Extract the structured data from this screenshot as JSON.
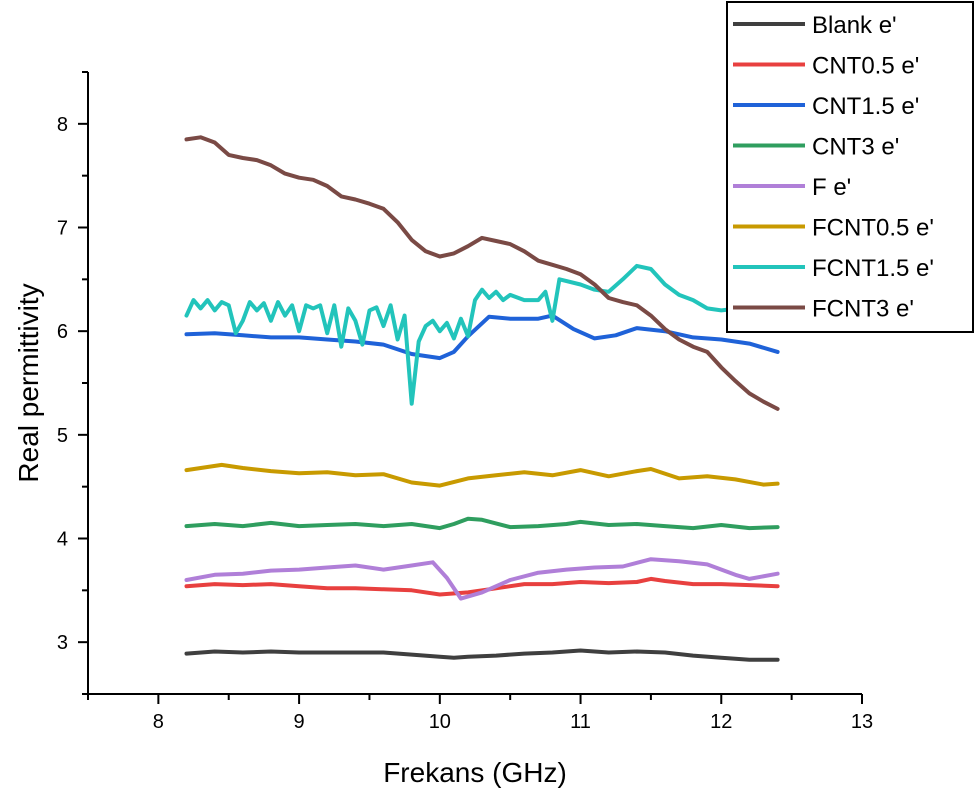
{
  "chart_data": {
    "type": "line",
    "xlabel": "Frekans (GHz)",
    "ylabel": "Real permittivity",
    "xlim": [
      7.5,
      13
    ],
    "ylim": [
      2.5,
      8.5
    ],
    "xticks": [
      8,
      9,
      10,
      11,
      12,
      13
    ],
    "yticks": [
      3,
      4,
      5,
      6,
      7,
      8
    ],
    "grid": false,
    "legend_position": "top-right",
    "series": [
      {
        "name": "Blank e'",
        "color": "#3f3f3f",
        "points": [
          [
            8.2,
            2.89
          ],
          [
            8.4,
            2.91
          ],
          [
            8.6,
            2.9
          ],
          [
            8.8,
            2.91
          ],
          [
            9.0,
            2.9
          ],
          [
            9.2,
            2.9
          ],
          [
            9.4,
            2.9
          ],
          [
            9.6,
            2.9
          ],
          [
            9.8,
            2.88
          ],
          [
            10.0,
            2.86
          ],
          [
            10.1,
            2.85
          ],
          [
            10.2,
            2.86
          ],
          [
            10.4,
            2.87
          ],
          [
            10.6,
            2.89
          ],
          [
            10.8,
            2.9
          ],
          [
            11.0,
            2.92
          ],
          [
            11.2,
            2.9
          ],
          [
            11.4,
            2.91
          ],
          [
            11.6,
            2.9
          ],
          [
            11.8,
            2.87
          ],
          [
            12.0,
            2.85
          ],
          [
            12.2,
            2.83
          ],
          [
            12.4,
            2.83
          ]
        ]
      },
      {
        "name": "CNT0.5 e'",
        "color": "#e8403f",
        "points": [
          [
            8.2,
            3.54
          ],
          [
            8.4,
            3.56
          ],
          [
            8.6,
            3.55
          ],
          [
            8.8,
            3.56
          ],
          [
            9.0,
            3.54
          ],
          [
            9.2,
            3.52
          ],
          [
            9.4,
            3.52
          ],
          [
            9.6,
            3.51
          ],
          [
            9.8,
            3.5
          ],
          [
            10.0,
            3.46
          ],
          [
            10.2,
            3.48
          ],
          [
            10.4,
            3.52
          ],
          [
            10.6,
            3.56
          ],
          [
            10.8,
            3.56
          ],
          [
            11.0,
            3.58
          ],
          [
            11.2,
            3.57
          ],
          [
            11.4,
            3.58
          ],
          [
            11.5,
            3.61
          ],
          [
            11.6,
            3.59
          ],
          [
            11.8,
            3.56
          ],
          [
            12.0,
            3.56
          ],
          [
            12.2,
            3.55
          ],
          [
            12.4,
            3.54
          ]
        ]
      },
      {
        "name": "CNT1.5 e'",
        "color": "#1f62d8",
        "points": [
          [
            8.2,
            5.97
          ],
          [
            8.4,
            5.98
          ],
          [
            8.6,
            5.96
          ],
          [
            8.8,
            5.94
          ],
          [
            9.0,
            5.94
          ],
          [
            9.2,
            5.92
          ],
          [
            9.4,
            5.9
          ],
          [
            9.6,
            5.87
          ],
          [
            9.8,
            5.78
          ],
          [
            10.0,
            5.74
          ],
          [
            10.1,
            5.8
          ],
          [
            10.2,
            5.95
          ],
          [
            10.35,
            6.14
          ],
          [
            10.5,
            6.12
          ],
          [
            10.7,
            6.12
          ],
          [
            10.8,
            6.15
          ],
          [
            10.95,
            6.02
          ],
          [
            11.1,
            5.93
          ],
          [
            11.25,
            5.96
          ],
          [
            11.4,
            6.03
          ],
          [
            11.6,
            6.0
          ],
          [
            11.8,
            5.94
          ],
          [
            12.0,
            5.92
          ],
          [
            12.2,
            5.88
          ],
          [
            12.4,
            5.8
          ]
        ]
      },
      {
        "name": "CNT3 e'",
        "color": "#2f9e5f",
        "points": [
          [
            8.2,
            4.12
          ],
          [
            8.4,
            4.14
          ],
          [
            8.6,
            4.12
          ],
          [
            8.8,
            4.15
          ],
          [
            9.0,
            4.12
          ],
          [
            9.2,
            4.13
          ],
          [
            9.4,
            4.14
          ],
          [
            9.6,
            4.12
          ],
          [
            9.8,
            4.14
          ],
          [
            10.0,
            4.1
          ],
          [
            10.1,
            4.14
          ],
          [
            10.2,
            4.19
          ],
          [
            10.3,
            4.18
          ],
          [
            10.5,
            4.11
          ],
          [
            10.7,
            4.12
          ],
          [
            10.9,
            4.14
          ],
          [
            11.0,
            4.16
          ],
          [
            11.2,
            4.13
          ],
          [
            11.4,
            4.14
          ],
          [
            11.6,
            4.12
          ],
          [
            11.8,
            4.1
          ],
          [
            12.0,
            4.13
          ],
          [
            12.2,
            4.1
          ],
          [
            12.4,
            4.11
          ]
        ]
      },
      {
        "name": "F e'",
        "color": "#b07fd8",
        "points": [
          [
            8.2,
            3.6
          ],
          [
            8.4,
            3.65
          ],
          [
            8.6,
            3.66
          ],
          [
            8.8,
            3.69
          ],
          [
            9.0,
            3.7
          ],
          [
            9.2,
            3.72
          ],
          [
            9.4,
            3.74
          ],
          [
            9.6,
            3.7
          ],
          [
            9.8,
            3.74
          ],
          [
            9.95,
            3.77
          ],
          [
            10.05,
            3.62
          ],
          [
            10.15,
            3.42
          ],
          [
            10.3,
            3.48
          ],
          [
            10.5,
            3.6
          ],
          [
            10.7,
            3.67
          ],
          [
            10.9,
            3.7
          ],
          [
            11.1,
            3.72
          ],
          [
            11.3,
            3.73
          ],
          [
            11.5,
            3.8
          ],
          [
            11.7,
            3.78
          ],
          [
            11.9,
            3.75
          ],
          [
            12.1,
            3.65
          ],
          [
            12.2,
            3.61
          ],
          [
            12.4,
            3.66
          ]
        ]
      },
      {
        "name": "FCNT0.5 e'",
        "color": "#c89a00",
        "points": [
          [
            8.2,
            4.66
          ],
          [
            8.45,
            4.71
          ],
          [
            8.6,
            4.68
          ],
          [
            8.8,
            4.65
          ],
          [
            9.0,
            4.63
          ],
          [
            9.2,
            4.64
          ],
          [
            9.4,
            4.61
          ],
          [
            9.6,
            4.62
          ],
          [
            9.8,
            4.54
          ],
          [
            10.0,
            4.51
          ],
          [
            10.2,
            4.58
          ],
          [
            10.4,
            4.61
          ],
          [
            10.6,
            4.64
          ],
          [
            10.8,
            4.61
          ],
          [
            11.0,
            4.66
          ],
          [
            11.2,
            4.6
          ],
          [
            11.4,
            4.65
          ],
          [
            11.5,
            4.67
          ],
          [
            11.7,
            4.58
          ],
          [
            11.9,
            4.6
          ],
          [
            12.1,
            4.57
          ],
          [
            12.3,
            4.52
          ],
          [
            12.4,
            4.53
          ]
        ]
      },
      {
        "name": "FCNT1.5 e'",
        "color": "#22c4bb",
        "points": [
          [
            8.2,
            6.15
          ],
          [
            8.25,
            6.3
          ],
          [
            8.3,
            6.22
          ],
          [
            8.35,
            6.3
          ],
          [
            8.4,
            6.2
          ],
          [
            8.45,
            6.28
          ],
          [
            8.5,
            6.25
          ],
          [
            8.55,
            5.98
          ],
          [
            8.6,
            6.1
          ],
          [
            8.65,
            6.28
          ],
          [
            8.7,
            6.2
          ],
          [
            8.75,
            6.27
          ],
          [
            8.8,
            6.1
          ],
          [
            8.85,
            6.28
          ],
          [
            8.9,
            6.15
          ],
          [
            8.95,
            6.25
          ],
          [
            9.0,
            6.0
          ],
          [
            9.05,
            6.25
          ],
          [
            9.1,
            6.22
          ],
          [
            9.15,
            6.25
          ],
          [
            9.2,
            5.98
          ],
          [
            9.25,
            6.25
          ],
          [
            9.3,
            5.85
          ],
          [
            9.35,
            6.22
          ],
          [
            9.4,
            6.1
          ],
          [
            9.45,
            5.87
          ],
          [
            9.5,
            6.2
          ],
          [
            9.55,
            6.23
          ],
          [
            9.6,
            6.05
          ],
          [
            9.65,
            6.25
          ],
          [
            9.7,
            5.92
          ],
          [
            9.75,
            6.15
          ],
          [
            9.8,
            5.3
          ],
          [
            9.85,
            5.9
          ],
          [
            9.9,
            6.05
          ],
          [
            9.95,
            6.1
          ],
          [
            10.0,
            6.0
          ],
          [
            10.05,
            6.08
          ],
          [
            10.1,
            5.93
          ],
          [
            10.15,
            6.12
          ],
          [
            10.2,
            5.95
          ],
          [
            10.25,
            6.3
          ],
          [
            10.3,
            6.4
          ],
          [
            10.35,
            6.32
          ],
          [
            10.4,
            6.38
          ],
          [
            10.45,
            6.3
          ],
          [
            10.5,
            6.35
          ],
          [
            10.6,
            6.3
          ],
          [
            10.7,
            6.3
          ],
          [
            10.75,
            6.38
          ],
          [
            10.8,
            6.1
          ],
          [
            10.85,
            6.5
          ],
          [
            11.0,
            6.45
          ],
          [
            11.1,
            6.4
          ],
          [
            11.2,
            6.38
          ],
          [
            11.3,
            6.5
          ],
          [
            11.4,
            6.63
          ],
          [
            11.5,
            6.6
          ],
          [
            11.6,
            6.45
          ],
          [
            11.7,
            6.35
          ],
          [
            11.8,
            6.3
          ],
          [
            11.9,
            6.22
          ],
          [
            12.0,
            6.2
          ],
          [
            12.2,
            6.23
          ],
          [
            12.4,
            6.2
          ]
        ]
      },
      {
        "name": "FCNT3 e'",
        "color": "#7a4a45",
        "points": [
          [
            8.2,
            7.85
          ],
          [
            8.3,
            7.87
          ],
          [
            8.4,
            7.82
          ],
          [
            8.5,
            7.7
          ],
          [
            8.6,
            7.67
          ],
          [
            8.7,
            7.65
          ],
          [
            8.8,
            7.6
          ],
          [
            8.9,
            7.52
          ],
          [
            9.0,
            7.48
          ],
          [
            9.1,
            7.46
          ],
          [
            9.2,
            7.4
          ],
          [
            9.3,
            7.3
          ],
          [
            9.4,
            7.27
          ],
          [
            9.5,
            7.23
          ],
          [
            9.6,
            7.18
          ],
          [
            9.7,
            7.05
          ],
          [
            9.8,
            6.88
          ],
          [
            9.9,
            6.77
          ],
          [
            10.0,
            6.72
          ],
          [
            10.1,
            6.75
          ],
          [
            10.2,
            6.82
          ],
          [
            10.3,
            6.9
          ],
          [
            10.4,
            6.87
          ],
          [
            10.5,
            6.84
          ],
          [
            10.6,
            6.77
          ],
          [
            10.7,
            6.68
          ],
          [
            10.8,
            6.64
          ],
          [
            10.9,
            6.6
          ],
          [
            11.0,
            6.55
          ],
          [
            11.1,
            6.45
          ],
          [
            11.2,
            6.32
          ],
          [
            11.3,
            6.28
          ],
          [
            11.4,
            6.25
          ],
          [
            11.5,
            6.15
          ],
          [
            11.6,
            6.02
          ],
          [
            11.7,
            5.92
          ],
          [
            11.8,
            5.85
          ],
          [
            11.9,
            5.8
          ],
          [
            12.0,
            5.65
          ],
          [
            12.1,
            5.52
          ],
          [
            12.2,
            5.4
          ],
          [
            12.3,
            5.32
          ],
          [
            12.4,
            5.25
          ]
        ]
      }
    ]
  }
}
